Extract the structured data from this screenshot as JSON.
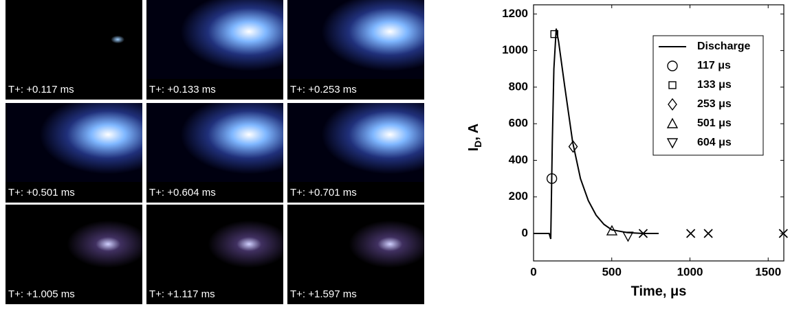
{
  "images": [
    {
      "label": "T+: +0.117 ms"
    },
    {
      "label": "T+: +0.133 ms"
    },
    {
      "label": "T+: +0.253 ms"
    },
    {
      "label": "T+: +0.501 ms"
    },
    {
      "label": "T+: +0.604 ms"
    },
    {
      "label": "T+: +0.701 ms"
    },
    {
      "label": "T+: +1.005 ms"
    },
    {
      "label": "T+: +1.117 ms"
    },
    {
      "label": "T+: +1.597 ms"
    }
  ],
  "chart_data": {
    "type": "line",
    "xlabel": "Time, μs",
    "ylabel": "I",
    "ylabel_sub": "D",
    "ylabel_rest": ", A",
    "xlim": [
      0,
      1600
    ],
    "ylim": [
      -150,
      1250
    ],
    "xticks": [
      0,
      500,
      1000,
      1500
    ],
    "yticks": [
      0,
      200,
      400,
      600,
      800,
      1000,
      1200
    ],
    "legend": "upper right",
    "series": [
      {
        "name": "Discharge",
        "color": "#000000",
        "marker": "none",
        "x": [
          0,
          100,
          110,
          120,
          130,
          145,
          160,
          200,
          250,
          300,
          350,
          400,
          450,
          500,
          600,
          700,
          800
        ],
        "values": [
          0,
          0,
          -30,
          500,
          900,
          1120,
          1050,
          800,
          500,
          300,
          180,
          100,
          50,
          20,
          5,
          0,
          0
        ]
      },
      {
        "name": "117 μs",
        "color": "#000000",
        "marker": "o",
        "x": [
          117
        ],
        "values": [
          300
        ]
      },
      {
        "name": "133 μs",
        "color": "#000000",
        "marker": "s",
        "x": [
          133
        ],
        "values": [
          1090
        ]
      },
      {
        "name": "253 μs",
        "color": "#000000",
        "marker": "d",
        "x": [
          253
        ],
        "values": [
          475
        ]
      },
      {
        "name": "501 μs",
        "color": "#000000",
        "marker": "^",
        "x": [
          501
        ],
        "values": [
          15
        ]
      },
      {
        "name": "604 μs",
        "color": "#000000",
        "marker": "v",
        "x": [
          604
        ],
        "values": [
          -15
        ]
      }
    ],
    "cross_markers": {
      "color": "#000000",
      "marker": "x",
      "x": [
        701,
        1005,
        1117,
        1597
      ],
      "values": [
        0,
        0,
        0,
        0
      ]
    }
  }
}
